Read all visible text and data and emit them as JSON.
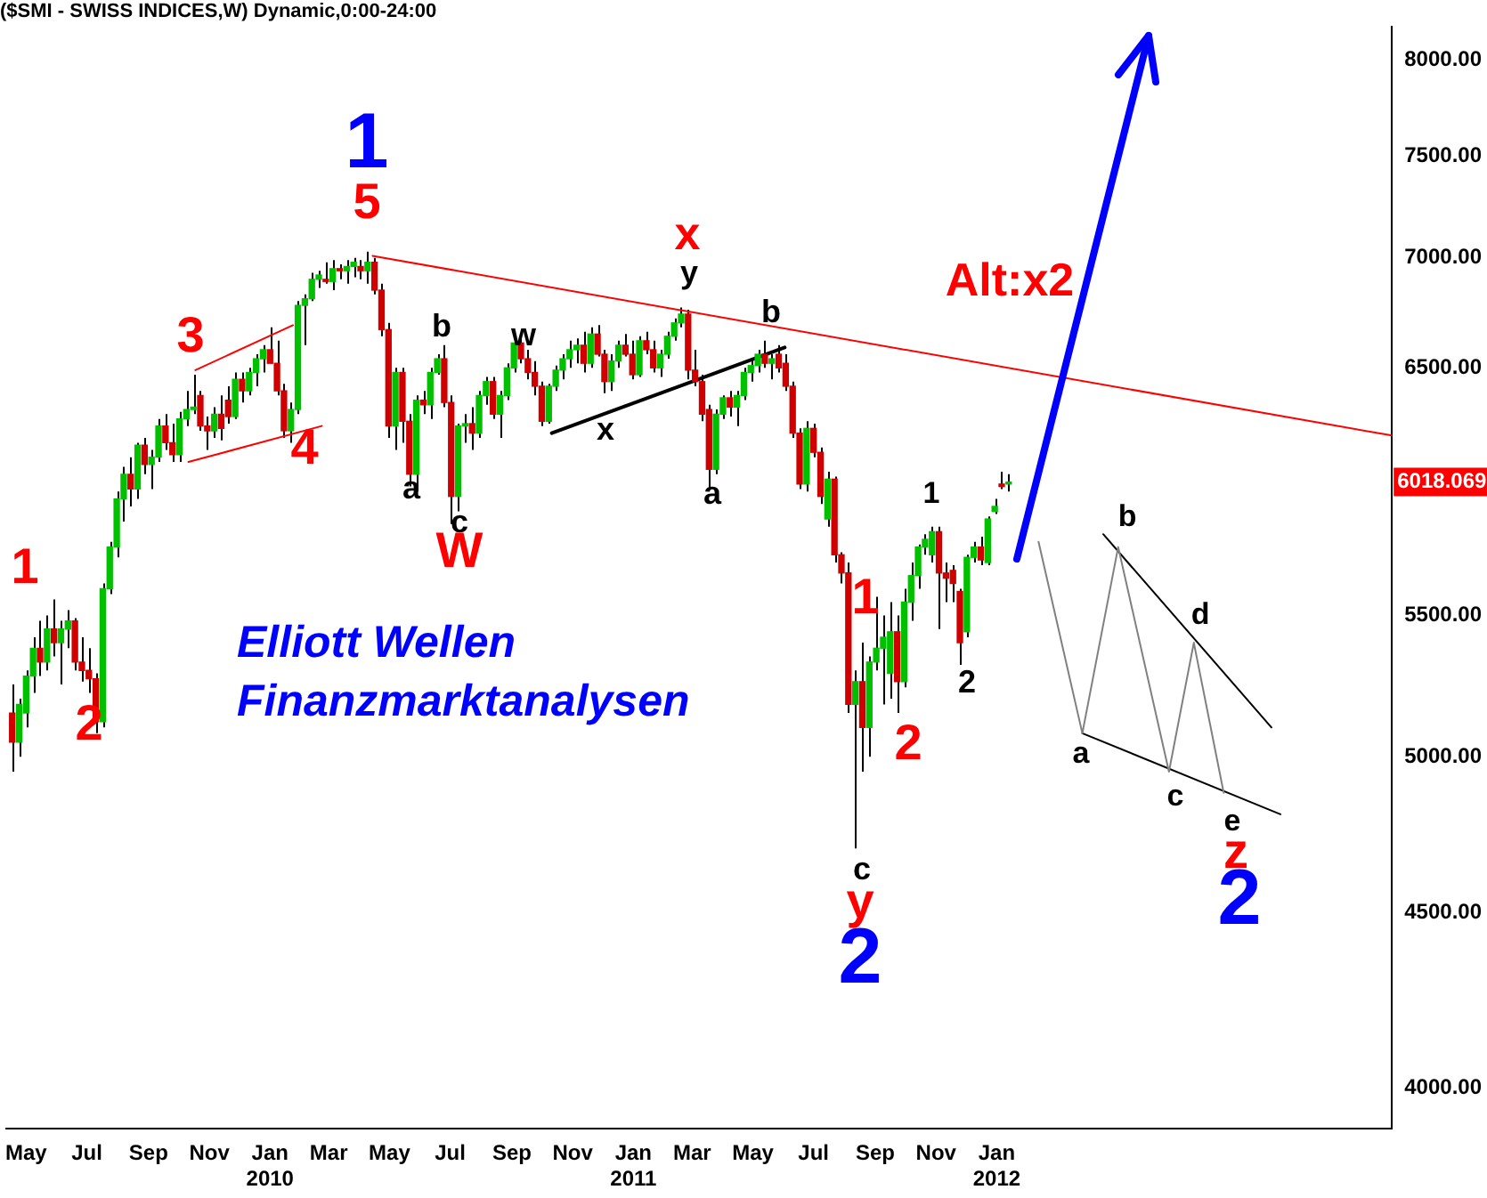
{
  "chart_data": {
    "type": "candlestick",
    "title": "($SMI - SWISS INDICES,W) Dynamic,0:00-24:00",
    "log": "y",
    "colors": [
      "#d00000",
      "#00c000",
      "#00c000",
      "#00c000",
      "#d00000",
      "#00c000",
      "#d00000",
      "#00c000",
      "#00c000",
      "#d00000",
      "#d00000",
      "#d00000",
      "#d00000",
      "#00c000",
      "#00c000",
      "#00c000",
      "#00c000",
      "#d00000",
      "#00c000",
      "#d00000",
      "#00c000",
      "#00c000",
      "#d00000",
      "#d00000",
      "#00c000",
      "#00c000",
      "#00c000",
      "#d00000",
      "#d00000",
      "#00c000",
      "#d00000",
      "#d00000",
      "#00c000",
      "#d00000",
      "#00c000",
      "#00c000",
      "#00c000",
      "#d00000",
      "#d00000",
      "#d00000",
      "#00c000",
      "#00c000",
      "#00c000",
      "#00c000",
      "#00c000",
      "#d00000",
      "#00c000",
      "#d00000",
      "#00c000",
      "#00c000",
      "#d00000",
      "#00c000",
      "#d00000",
      "#d00000",
      "#d00000",
      "#00c000",
      "#d00000",
      "#d00000",
      "#00c000",
      "#d00000",
      "#00c000",
      "#00c000",
      "#d00000",
      "#d00000",
      "#00c000",
      "#00c000",
      "#d00000",
      "#00c000",
      "#00c000",
      "#d00000",
      "#00c000",
      "#00c000",
      "#00c000",
      "#d00000",
      "#d00000",
      "#d00000",
      "#d00000",
      "#00c000",
      "#00c000",
      "#00c000",
      "#00c000",
      "#00c000",
      "#d00000",
      "#00c000",
      "#d00000",
      "#d00000",
      "#00c000",
      "#00c000",
      "#d00000",
      "#d00000",
      "#00c000",
      "#d00000",
      "#d00000",
      "#00c000",
      "#00c000",
      "#00c000",
      "#00c000",
      "#d00000",
      "#d00000",
      "#d00000",
      "#d00000",
      "#00c000",
      "#00c000",
      "#d00000",
      "#00c000",
      "#00c000",
      "#00c000",
      "#00c000",
      "#d00000",
      "#00c000",
      "#d00000",
      "#d00000",
      "#d00000",
      "#d00000",
      "#00c000",
      "#d00000",
      "#d00000",
      "#00c000",
      "#d00000",
      "#d00000",
      "#d00000",
      "#00c000",
      "#d00000",
      "#00c000",
      "#00c000",
      "#00c000",
      "#00c000",
      "#d00000",
      "#00c000",
      "#00c000",
      "#00c000",
      "#00c000",
      "#00c000",
      "#d00000",
      "#d00000",
      "#d00000",
      "#d00000",
      "#00c000",
      "#00c000",
      "#d00000",
      "#00c000",
      "#00c000",
      "#d00000",
      "#00c000"
    ],
    "x": [
      "2009-04-17",
      "2009-04-24",
      "2009-05-01",
      "2009-05-08",
      "2009-05-15",
      "2009-05-22",
      "2009-05-29",
      "2009-06-05",
      "2009-06-12",
      "2009-06-19",
      "2009-06-26",
      "2009-07-03",
      "2009-07-10",
      "2009-07-17",
      "2009-07-24",
      "2009-07-31",
      "2009-08-07",
      "2009-08-14",
      "2009-08-21",
      "2009-08-28",
      "2009-09-04",
      "2009-09-11",
      "2009-09-18",
      "2009-09-25",
      "2009-10-02",
      "2009-10-09",
      "2009-10-16",
      "2009-10-23",
      "2009-10-30",
      "2009-11-06",
      "2009-11-13",
      "2009-11-20",
      "2009-11-27",
      "2009-12-04",
      "2009-12-11",
      "2009-12-18",
      "2009-12-25",
      "2010-01-01",
      "2010-01-08",
      "2010-01-15",
      "2010-01-22",
      "2010-01-29",
      "2010-02-05",
      "2010-02-12",
      "2010-02-19",
      "2010-02-26",
      "2010-03-05",
      "2010-03-12",
      "2010-03-19",
      "2010-03-26",
      "2010-04-02",
      "2010-04-09",
      "2010-04-16",
      "2010-04-23",
      "2010-04-30",
      "2010-05-07",
      "2010-05-14",
      "2010-05-21",
      "2010-05-28",
      "2010-06-04",
      "2010-06-11",
      "2010-06-18",
      "2010-06-25",
      "2010-07-02",
      "2010-07-09",
      "2010-07-16",
      "2010-07-23",
      "2010-07-30",
      "2010-08-06",
      "2010-08-13",
      "2010-08-20",
      "2010-08-27",
      "2010-09-03",
      "2010-09-10",
      "2010-09-17",
      "2010-09-24",
      "2010-10-01",
      "2010-10-08",
      "2010-10-15",
      "2010-10-22",
      "2010-10-29",
      "2010-11-05",
      "2010-11-12",
      "2010-11-19",
      "2010-11-26",
      "2010-12-03",
      "2010-12-10",
      "2010-12-17",
      "2010-12-24",
      "2010-12-31",
      "2011-01-07",
      "2011-01-14",
      "2011-01-21",
      "2011-01-28",
      "2011-02-04",
      "2011-02-11",
      "2011-02-18",
      "2011-02-25",
      "2011-03-04",
      "2011-03-11",
      "2011-03-18",
      "2011-03-25",
      "2011-04-01",
      "2011-04-08",
      "2011-04-15",
      "2011-04-22",
      "2011-04-29",
      "2011-05-06",
      "2011-05-13",
      "2011-05-20",
      "2011-05-27",
      "2011-06-03",
      "2011-06-10",
      "2011-06-17",
      "2011-06-24",
      "2011-07-01",
      "2011-07-08",
      "2011-07-15",
      "2011-07-22",
      "2011-07-29",
      "2011-08-05",
      "2011-08-12",
      "2011-08-19",
      "2011-08-26",
      "2011-09-02",
      "2011-09-09",
      "2011-09-16",
      "2011-09-23",
      "2011-09-30",
      "2011-10-07",
      "2011-10-14",
      "2011-10-21",
      "2011-10-28",
      "2011-11-04",
      "2011-11-11",
      "2011-11-18",
      "2011-11-25",
      "2011-12-02",
      "2011-12-09",
      "2011-12-16",
      "2011-12-23",
      "2011-12-30",
      "2012-01-06",
      "2012-01-13"
    ],
    "ohlc": [
      [
        5150,
        5250,
        4950,
        5050
      ],
      [
        5050,
        5200,
        5000,
        5180
      ],
      [
        5150,
        5300,
        5100,
        5280
      ],
      [
        5280,
        5420,
        5220,
        5380
      ],
      [
        5380,
        5480,
        5280,
        5330
      ],
      [
        5330,
        5500,
        5300,
        5450
      ],
      [
        5450,
        5560,
        5350,
        5400
      ],
      [
        5400,
        5480,
        5250,
        5450
      ],
      [
        5450,
        5520,
        5380,
        5480
      ],
      [
        5480,
        5490,
        5300,
        5330
      ],
      [
        5330,
        5420,
        5260,
        5300
      ],
      [
        5300,
        5380,
        5220,
        5270
      ],
      [
        5270,
        5290,
        5080,
        5120
      ],
      [
        5120,
        5620,
        5100,
        5600
      ],
      [
        5600,
        5780,
        5580,
        5760
      ],
      [
        5760,
        5980,
        5720,
        5950
      ],
      [
        5950,
        6080,
        5860,
        6050
      ],
      [
        6050,
        6120,
        5920,
        5990
      ],
      [
        5990,
        6180,
        5950,
        6170
      ],
      [
        6170,
        6200,
        6050,
        6090
      ],
      [
        6090,
        6150,
        5990,
        6120
      ],
      [
        6120,
        6280,
        6100,
        6250
      ],
      [
        6250,
        6300,
        6150,
        6180
      ],
      [
        6180,
        6260,
        6100,
        6130
      ],
      [
        6130,
        6310,
        6100,
        6280
      ],
      [
        6280,
        6400,
        6250,
        6320
      ],
      [
        6320,
        6470,
        6300,
        6330
      ],
      [
        6380,
        6400,
        6230,
        6250
      ],
      [
        6250,
        6290,
        6150,
        6230
      ],
      [
        6230,
        6330,
        6200,
        6300
      ],
      [
        6300,
        6380,
        6190,
        6240
      ],
      [
        6360,
        6420,
        6260,
        6290
      ],
      [
        6290,
        6480,
        6280,
        6450
      ],
      [
        6450,
        6480,
        6350,
        6400
      ],
      [
        6400,
        6500,
        6380,
        6480
      ],
      [
        6480,
        6560,
        6420,
        6540
      ],
      [
        6540,
        6600,
        6480,
        6580
      ],
      [
        6580,
        6680,
        6520,
        6520
      ],
      [
        6520,
        6620,
        6380,
        6400
      ],
      [
        6400,
        6430,
        6200,
        6230
      ],
      [
        6230,
        6350,
        6180,
        6320
      ],
      [
        6320,
        6800,
        6300,
        6780
      ],
      [
        6780,
        6830,
        6600,
        6810
      ],
      [
        6810,
        6930,
        6800,
        6900
      ],
      [
        6900,
        6940,
        6860,
        6920
      ],
      [
        6900,
        6980,
        6880,
        6890
      ],
      [
        6890,
        6990,
        6850,
        6950
      ],
      [
        6950,
        6970,
        6900,
        6940
      ],
      [
        6940,
        6990,
        6880,
        6960
      ],
      [
        6960,
        7000,
        6910,
        6980
      ],
      [
        6960,
        6990,
        6900,
        6940
      ],
      [
        6940,
        7030,
        6880,
        6980
      ],
      [
        6980,
        7000,
        6830,
        6850
      ],
      [
        6850,
        6880,
        6640,
        6670
      ],
      [
        6670,
        6700,
        6200,
        6250
      ],
      [
        6250,
        6500,
        6150,
        6480
      ],
      [
        6480,
        6500,
        6180,
        6270
      ],
      [
        6270,
        6300,
        6000,
        6050
      ],
      [
        6050,
        6380,
        5980,
        6360
      ],
      [
        6360,
        6400,
        6300,
        6340
      ],
      [
        6340,
        6500,
        6280,
        6480
      ],
      [
        6480,
        6560,
        6470,
        6540
      ],
      [
        6540,
        6600,
        6330,
        6350
      ],
      [
        6350,
        6380,
        5850,
        5960
      ],
      [
        5960,
        6260,
        5900,
        6250
      ],
      [
        6250,
        6300,
        6180,
        6260
      ],
      [
        6260,
        6330,
        6150,
        6220
      ],
      [
        6220,
        6400,
        6200,
        6380
      ],
      [
        6380,
        6460,
        6340,
        6440
      ],
      [
        6440,
        6460,
        6280,
        6300
      ],
      [
        6300,
        6400,
        6200,
        6380
      ],
      [
        6380,
        6520,
        6360,
        6500
      ],
      [
        6500,
        6640,
        6480,
        6610
      ],
      [
        6610,
        6630,
        6520,
        6540
      ],
      [
        6540,
        6580,
        6450,
        6480
      ],
      [
        6480,
        6530,
        6380,
        6420
      ],
      [
        6420,
        6440,
        6250,
        6270
      ],
      [
        6270,
        6430,
        6260,
        6420
      ],
      [
        6420,
        6510,
        6400,
        6490
      ],
      [
        6490,
        6560,
        6450,
        6540
      ],
      [
        6540,
        6620,
        6500,
        6580
      ],
      [
        6580,
        6630,
        6520,
        6600
      ],
      [
        6600,
        6660,
        6480,
        6520
      ],
      [
        6520,
        6680,
        6500,
        6650
      ],
      [
        6650,
        6690,
        6550,
        6560
      ],
      [
        6560,
        6580,
        6390,
        6440
      ],
      [
        6440,
        6560,
        6400,
        6530
      ],
      [
        6530,
        6620,
        6500,
        6600
      ],
      [
        6600,
        6650,
        6550,
        6560
      ],
      [
        6560,
        6620,
        6450,
        6470
      ],
      [
        6470,
        6640,
        6460,
        6620
      ],
      [
        6620,
        6660,
        6560,
        6580
      ],
      [
        6580,
        6620,
        6480,
        6500
      ],
      [
        6500,
        6580,
        6460,
        6560
      ],
      [
        6560,
        6660,
        6540,
        6640
      ],
      [
        6640,
        6720,
        6620,
        6700
      ],
      [
        6700,
        6770,
        6680,
        6740
      ],
      [
        6740,
        6760,
        6450,
        6490
      ],
      [
        6490,
        6580,
        6420,
        6440
      ],
      [
        6440,
        6470,
        6270,
        6300
      ],
      [
        6320,
        6340,
        5990,
        6070
      ],
      [
        6070,
        6320,
        6050,
        6300
      ],
      [
        6300,
        6380,
        6280,
        6370
      ],
      [
        6370,
        6400,
        6290,
        6330
      ],
      [
        6330,
        6400,
        6250,
        6380
      ],
      [
        6380,
        6500,
        6360,
        6480
      ],
      [
        6480,
        6540,
        6440,
        6510
      ],
      [
        6510,
        6580,
        6480,
        6560
      ],
      [
        6560,
        6620,
        6500,
        6520
      ],
      [
        6520,
        6560,
        6450,
        6540
      ],
      [
        6560,
        6600,
        6480,
        6500
      ],
      [
        6520,
        6560,
        6400,
        6420
      ],
      [
        6420,
        6440,
        6200,
        6220
      ],
      [
        6220,
        6240,
        5990,
        6010
      ],
      [
        6010,
        6270,
        5980,
        6240
      ],
      [
        6240,
        6260,
        6120,
        6140
      ],
      [
        6140,
        6160,
        5930,
        5960
      ],
      [
        5870,
        6060,
        5840,
        6030
      ],
      [
        6030,
        6040,
        5700,
        5730
      ],
      [
        5730,
        5740,
        5620,
        5660
      ],
      [
        5660,
        5700,
        5150,
        5180
      ],
      [
        5180,
        5300,
        4700,
        5260
      ],
      [
        5260,
        5400,
        4950,
        5100
      ],
      [
        5100,
        5350,
        5000,
        5330
      ],
      [
        5330,
        5570,
        5300,
        5380
      ],
      [
        5380,
        5500,
        5180,
        5420
      ],
      [
        5290,
        5550,
        5200,
        5440
      ],
      [
        5440,
        5500,
        5150,
        5260
      ],
      [
        5260,
        5600,
        5240,
        5550
      ],
      [
        5550,
        5700,
        5480,
        5650
      ],
      [
        5650,
        5770,
        5600,
        5760
      ],
      [
        5760,
        5810,
        5730,
        5790
      ],
      [
        5730,
        5840,
        5700,
        5820
      ],
      [
        5820,
        5840,
        5450,
        5660
      ],
      [
        5660,
        5700,
        5550,
        5640
      ],
      [
        5670,
        5690,
        5550,
        5620
      ],
      [
        5590,
        5600,
        5320,
        5400
      ],
      [
        5440,
        5730,
        5420,
        5720
      ],
      [
        5720,
        5780,
        5700,
        5760
      ],
      [
        5760,
        5800,
        5690,
        5710
      ],
      [
        5700,
        5880,
        5690,
        5870
      ],
      [
        5900,
        5950,
        5890,
        5920
      ],
      [
        6010,
        6060,
        5990,
        6000
      ],
      [
        6010,
        6050,
        5980,
        6018.069
      ]
    ],
    "series": [
      {
        "type": "line",
        "color": "#ff0000",
        "x": [
          "2010-04-14",
          "2013-02-01"
        ],
        "values": [
          7010,
          6210
        ]
      },
      {
        "type": "line",
        "color": "#ff0000",
        "x": [
          "2009-10-18",
          "2010-01-24"
        ],
        "values": [
          6490,
          6690
        ]
      },
      {
        "type": "line",
        "color": "#ff0000",
        "x": [
          "2009-10-11",
          "2010-02-22"
        ],
        "values": [
          6100,
          6250
        ]
      },
      {
        "type": "line",
        "color": "#000000",
        "x": [
          "2010-10-11",
          "2011-06-02"
        ],
        "values": [
          6220,
          6590
        ]
      },
      {
        "type": "line",
        "color": "#808080",
        "x": [
          "2012-02-12",
          "2012-03-27",
          "2012-05-02",
          "2012-06-22",
          "2012-07-17",
          "2012-08-16"
        ],
        "values": [
          5780,
          5080,
          5760,
          4950,
          5400,
          4880
        ]
      },
      {
        "type": "line",
        "color": "#000000",
        "x": [
          "2012-04-17",
          "2012-10-03"
        ],
        "values": [
          5810,
          5100
        ]
      },
      {
        "type": "line",
        "color": "#000000",
        "x": [
          "2012-03-27",
          "2012-10-12"
        ],
        "values": [
          5080,
          4810
        ]
      }
    ],
    "xlim": [
      "2009-04-11",
      "2013-02-01"
    ],
    "xticks": [
      {
        "value": "2009-05-01",
        "label": "May"
      },
      {
        "value": "2009-07-01",
        "label": "Jul"
      },
      {
        "value": "2009-09-01",
        "label": "Sep"
      },
      {
        "value": "2009-11-01",
        "label": "Nov"
      },
      {
        "value": "2010-01-01",
        "label": "Jan\n2010"
      },
      {
        "value": "2010-03-01",
        "label": "Mar"
      },
      {
        "value": "2010-05-01",
        "label": "May"
      },
      {
        "value": "2010-07-01",
        "label": "Jul"
      },
      {
        "value": "2010-09-01",
        "label": "Sep"
      },
      {
        "value": "2010-11-01",
        "label": "Nov"
      },
      {
        "value": "2011-01-01",
        "label": "Jan\n2011"
      },
      {
        "value": "2011-03-01",
        "label": "Mar"
      },
      {
        "value": "2011-05-01",
        "label": "May"
      },
      {
        "value": "2011-07-01",
        "label": "Jul"
      },
      {
        "value": "2011-09-01",
        "label": "Sep"
      },
      {
        "value": "2011-11-01",
        "label": "Nov"
      },
      {
        "value": "2012-01-01",
        "label": "Jan\n2012"
      }
    ],
    "ylim": [
      3890,
      8180
    ],
    "yticks": [
      {
        "value": 4000,
        "label": "4000.00"
      },
      {
        "value": 4500,
        "label": "4500.00"
      },
      {
        "value": 5000,
        "label": "5000.00"
      },
      {
        "value": 5500,
        "label": "5500.00"
      },
      {
        "value": 6500,
        "label": "6500.00"
      },
      {
        "value": 7000,
        "label": "7000.00"
      },
      {
        "value": 7500,
        "label": "7500.00"
      },
      {
        "value": 8000,
        "label": "8000.00"
      }
    ],
    "annotations": [
      "1",
      "2",
      "3",
      "4",
      "5",
      "1",
      "a",
      "b",
      "c",
      "W",
      "w",
      "x",
      "x",
      "y",
      "a",
      "b",
      "1",
      "2",
      "c",
      "y",
      "2",
      "1",
      "2",
      "Alt:x2",
      "a",
      "b",
      "c",
      "d",
      "e",
      "z",
      "2",
      "Elliott Wellen",
      "Finanzmarktanalysen",
      "6018.069"
    ]
  }
}
